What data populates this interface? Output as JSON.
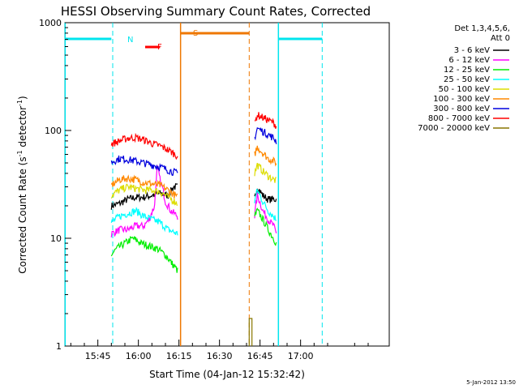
{
  "chart_data": {
    "type": "line",
    "title": "HESSI Observing Summary Count Rates, Corrected",
    "xlabel": "Start Time (04-Jan-12 15:32:42)",
    "ylabel_main": "Corrected Count Rate (s",
    "ylabel_sup1": "-1",
    "ylabel_mid": " detector",
    "ylabel_sup2": "-1",
    "ylabel_end": ")",
    "y_scale": "log",
    "ylim": [
      1,
      1000
    ],
    "xlim_minutes": [
      15.5467,
      17.5467
    ],
    "xlim_clock": [
      "15:32:42",
      "17:32:42"
    ],
    "x_ticks": [
      "15:45",
      "16:00",
      "16:15",
      "16:30",
      "16:45",
      "17:00"
    ],
    "x_ticks_minutes": [
      945,
      960,
      975,
      990,
      1005,
      1020
    ],
    "y_ticks": [
      "1",
      "10",
      "100",
      "1000"
    ],
    "y_ticks_values": [
      1,
      10,
      100,
      1000
    ],
    "legend": {
      "placement": "right-outside",
      "header_line1": "Det 1,3,4,5,6,",
      "header_line2": "Att 0"
    },
    "footer_date": "5-Jan-2012 13:50",
    "flags": [
      {
        "label": "N",
        "color": "#00e5ee"
      },
      {
        "label": "F",
        "color": "#ff0000"
      },
      {
        "label": "S",
        "color": "#ee7700"
      }
    ],
    "night_bars": [
      {
        "start_min": 932.7,
        "end_min": 950.0
      },
      {
        "start_min": 1012.0,
        "end_min": 1028.0
      }
    ],
    "night_dashed": [
      950.5,
      1028.0
    ],
    "night_solid": [
      932.9,
      1011.8
    ],
    "saa_bar": {
      "start_min": 975.6,
      "end_min": 1001.0
    },
    "saa_solid": 975.6,
    "saa_dashed": 1001.0,
    "flare_bar": {
      "start_min": 962.5,
      "end_min": 968.0
    },
    "series": [
      {
        "name": "3 - 6 keV",
        "color": "#000000",
        "seg1": [
          [
            950,
            20
          ],
          [
            953,
            21
          ],
          [
            956,
            23
          ],
          [
            959,
            24
          ],
          [
            962,
            24
          ],
          [
            965,
            25
          ],
          [
            968,
            26
          ],
          [
            971,
            25
          ],
          [
            973,
            30
          ],
          [
            974.5,
            30
          ]
        ],
        "seg2": [
          [
            1003,
            23
          ],
          [
            1004,
            30
          ],
          [
            1006,
            25
          ],
          [
            1008,
            23
          ],
          [
            1010,
            23
          ],
          [
            1011,
            23
          ]
        ]
      },
      {
        "name": "6 - 12 keV",
        "color": "#ff00ff",
        "seg1": [
          [
            950,
            11
          ],
          [
            953,
            12
          ],
          [
            956,
            12
          ],
          [
            959,
            13
          ],
          [
            962,
            13
          ],
          [
            964,
            15
          ],
          [
            966,
            20
          ],
          [
            967,
            45
          ],
          [
            968,
            35
          ],
          [
            970,
            22
          ],
          [
            972,
            18
          ],
          [
            974.5,
            16
          ]
        ],
        "seg2": [
          [
            1003,
            16
          ],
          [
            1004,
            25
          ],
          [
            1006,
            18
          ],
          [
            1008,
            15
          ],
          [
            1010,
            13
          ],
          [
            1011,
            11
          ]
        ]
      },
      {
        "name": "12 - 25 keV",
        "color": "#00ee00",
        "seg1": [
          [
            950,
            7
          ],
          [
            952,
            8
          ],
          [
            955,
            9
          ],
          [
            958,
            10
          ],
          [
            961,
            9
          ],
          [
            964,
            8.5
          ],
          [
            967,
            8
          ],
          [
            970,
            7
          ],
          [
            972,
            6
          ],
          [
            974.5,
            5
          ]
        ],
        "seg2": [
          [
            1003,
            16
          ],
          [
            1004,
            18
          ],
          [
            1006,
            15
          ],
          [
            1008,
            12
          ],
          [
            1010,
            10
          ],
          [
            1011,
            9
          ]
        ]
      },
      {
        "name": "25 - 50 keV",
        "color": "#00ffff",
        "seg1": [
          [
            950,
            14
          ],
          [
            953,
            16
          ],
          [
            956,
            17
          ],
          [
            959,
            18
          ],
          [
            962,
            16
          ],
          [
            965,
            15
          ],
          [
            968,
            14
          ],
          [
            971,
            12
          ],
          [
            974.5,
            11
          ]
        ],
        "seg2": [
          [
            1003,
            22
          ],
          [
            1004,
            28
          ],
          [
            1006,
            22
          ],
          [
            1008,
            18
          ],
          [
            1010,
            16
          ],
          [
            1011,
            15
          ]
        ]
      },
      {
        "name": "50 - 100 keV",
        "color": "#dddd00",
        "seg1": [
          [
            950,
            25
          ],
          [
            953,
            28
          ],
          [
            956,
            30
          ],
          [
            959,
            29
          ],
          [
            962,
            28
          ],
          [
            965,
            28
          ],
          [
            968,
            27
          ],
          [
            971,
            24
          ],
          [
            974.5,
            21
          ]
        ],
        "seg2": [
          [
            1003,
            40
          ],
          [
            1004,
            48
          ],
          [
            1006,
            42
          ],
          [
            1008,
            38
          ],
          [
            1010,
            35
          ],
          [
            1011,
            34
          ]
        ]
      },
      {
        "name": "100 - 300 keV",
        "color": "#ff8800",
        "seg1": [
          [
            950,
            31
          ],
          [
            953,
            35
          ],
          [
            956,
            36
          ],
          [
            959,
            35
          ],
          [
            962,
            33
          ],
          [
            965,
            32
          ],
          [
            968,
            31
          ],
          [
            971,
            28
          ],
          [
            974.5,
            24
          ]
        ],
        "seg2": [
          [
            1003,
            60
          ],
          [
            1004,
            70
          ],
          [
            1006,
            62
          ],
          [
            1008,
            55
          ],
          [
            1010,
            52
          ],
          [
            1011,
            50
          ]
        ]
      },
      {
        "name": "300 - 800 keV",
        "color": "#0000dd",
        "seg1": [
          [
            950,
            51
          ],
          [
            953,
            55
          ],
          [
            956,
            54
          ],
          [
            959,
            52
          ],
          [
            962,
            50
          ],
          [
            965,
            48
          ],
          [
            968,
            46
          ],
          [
            971,
            43
          ],
          [
            974.5,
            40
          ]
        ],
        "seg2": [
          [
            1003,
            85
          ],
          [
            1004,
            105
          ],
          [
            1006,
            98
          ],
          [
            1008,
            92
          ],
          [
            1010,
            85
          ],
          [
            1011,
            80
          ]
        ]
      },
      {
        "name": "800 - 7000 keV",
        "color": "#ff0000",
        "seg1": [
          [
            950,
            75
          ],
          [
            953,
            80
          ],
          [
            956,
            85
          ],
          [
            959,
            86
          ],
          [
            962,
            82
          ],
          [
            965,
            76
          ],
          [
            968,
            72
          ],
          [
            971,
            66
          ],
          [
            974.5,
            58
          ]
        ],
        "seg2": [
          [
            1003,
            115
          ],
          [
            1004,
            140
          ],
          [
            1006,
            132
          ],
          [
            1008,
            125
          ],
          [
            1010,
            118
          ],
          [
            1011,
            110
          ]
        ]
      },
      {
        "name": "7000 - 20000 keV",
        "color": "#887700",
        "seg1": [],
        "seg2": [
          [
            1001,
            1
          ],
          [
            1001,
            1.8
          ],
          [
            1002,
            1.8
          ],
          [
            1002,
            1
          ]
        ]
      }
    ]
  }
}
